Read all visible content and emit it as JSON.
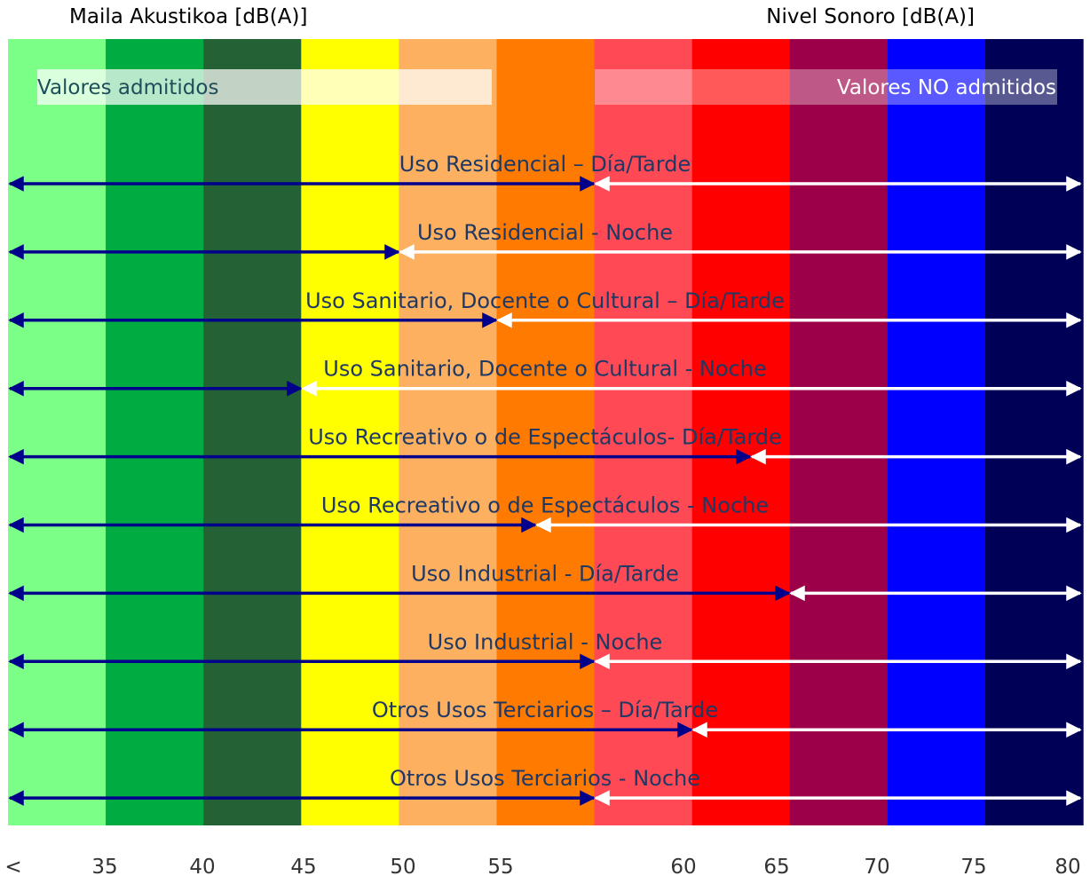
{
  "header": {
    "left_title": "Maila Akustikoa [dB(A)]",
    "right_title": "Nivel Sonoro [dB(A)]"
  },
  "legend": {
    "admitted": "Valores admitidos",
    "not_admitted": "Valores NO admitidos"
  },
  "bands": [
    {
      "color": "#7CFF86"
    },
    {
      "color": "#00AC41"
    },
    {
      "color": "#246135"
    },
    {
      "color": "#FFFF00"
    },
    {
      "color": "#FCB060"
    },
    {
      "color": "#FF7A00"
    },
    {
      "color": "#FF4A55"
    },
    {
      "color": "#FF0000"
    },
    {
      "color": "#9B0048"
    },
    {
      "color": "#0000FF"
    },
    {
      "color": "#000056"
    }
  ],
  "axis_ticks": [
    "<",
    "35",
    "40",
    "45",
    "50",
    "55",
    "60",
    "65",
    "70",
    "75",
    "80"
  ],
  "arrow_colors": {
    "admitted": "#00008B",
    "not_admitted": "#FFFFFF"
  },
  "uses": [
    {
      "label": "Uso Residencial – Día/Tarde",
      "limit_db": 60
    },
    {
      "label": "Uso Residencial - Noche",
      "limit_db": 50
    },
    {
      "label": "Uso Sanitario, Docente o Cultural – Día/Tarde",
      "limit_db": 55
    },
    {
      "label": "Uso Sanitario, Docente o Cultural - Noche",
      "limit_db": 45
    },
    {
      "label": "Uso Recreativo o de Espectáculos- Día/Tarde",
      "limit_db": 68
    },
    {
      "label": "Uso Recreativo o de Espectáculos - Noche",
      "limit_db": 57
    },
    {
      "label": "Uso Industrial - Día/Tarde",
      "limit_db": 70
    },
    {
      "label": "Uso Industrial - Noche",
      "limit_db": 60
    },
    {
      "label": "Otros Usos Terciarios – Día/Tarde",
      "limit_db": 65
    },
    {
      "label": "Otros Usos Terciarios - Noche",
      "limit_db": 60
    }
  ]
}
